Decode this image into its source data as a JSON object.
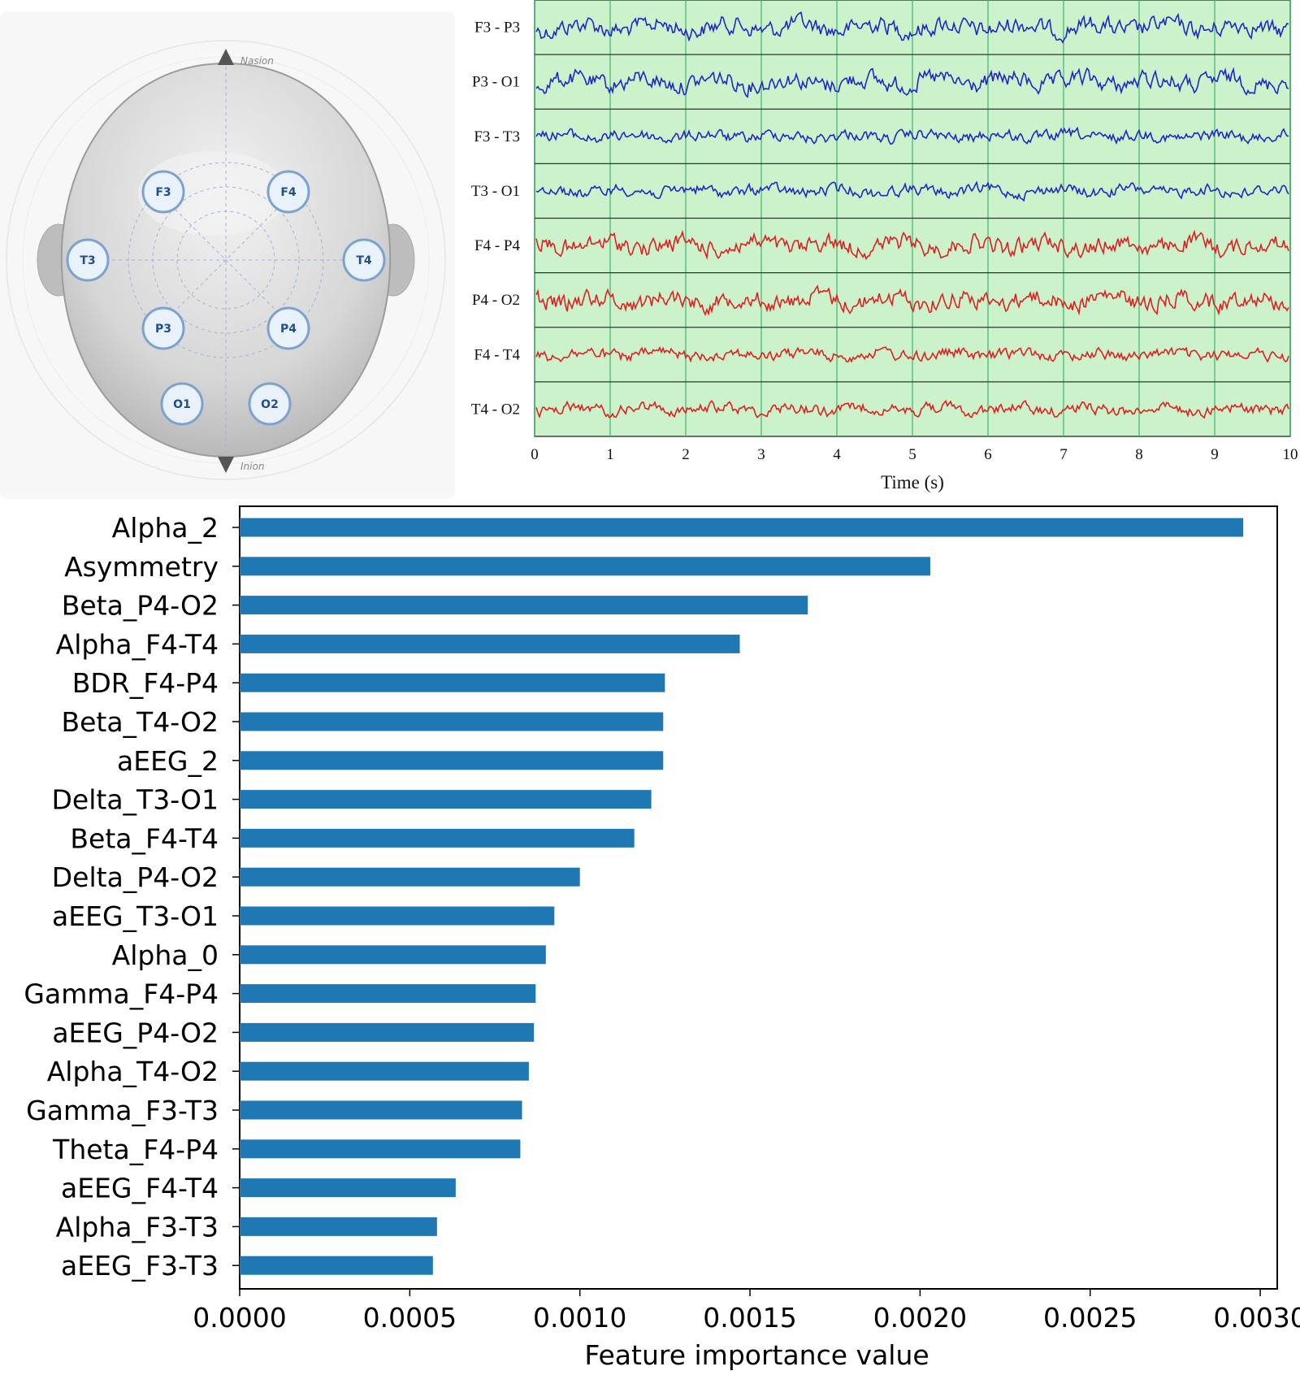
{
  "head_map": {
    "nasion_label": "Nasion",
    "inion_label": "Inion",
    "electrodes": [
      {
        "id": "F3",
        "label": "F3"
      },
      {
        "id": "F4",
        "label": "F4"
      },
      {
        "id": "T3",
        "label": "T3"
      },
      {
        "id": "T4",
        "label": "T4"
      },
      {
        "id": "P3",
        "label": "P3"
      },
      {
        "id": "P4",
        "label": "P4"
      },
      {
        "id": "O1",
        "label": "O1"
      },
      {
        "id": "O2",
        "label": "O2"
      }
    ],
    "colors": {
      "electrode_fill": "#e9f1fb",
      "electrode_stroke": "#7da2cf",
      "electrode_text": "#1f4f8f",
      "head": "#d4d4d4"
    }
  },
  "chart_data": [
    {
      "type": "line",
      "xlabel": "Time (s)",
      "xlim": [
        0,
        10
      ],
      "xticks": [
        "0",
        "1",
        "2",
        "3",
        "4",
        "5",
        "6",
        "7",
        "8",
        "9",
        "10"
      ],
      "grid": true,
      "background": "#ccf2cc",
      "channels": [
        {
          "name": "F3 - P3",
          "color": "#2424c8"
        },
        {
          "name": "P3 - O1",
          "color": "#2424c8"
        },
        {
          "name": "F3 - T3",
          "color": "#2424c8"
        },
        {
          "name": "T3 - O1",
          "color": "#2424c8"
        },
        {
          "name": "F4 - P4",
          "color": "#e02020"
        },
        {
          "name": "P4 - O2",
          "color": "#e02020"
        },
        {
          "name": "F4 - T4",
          "color": "#e02020"
        },
        {
          "name": "T4 - O2",
          "color": "#e02020"
        }
      ]
    },
    {
      "type": "bar",
      "orientation": "horizontal",
      "xlabel": "Feature importance value",
      "xlim": [
        0,
        0.00305
      ],
      "xticks": [
        "0.0000",
        "0.0005",
        "0.0010",
        "0.0015",
        "0.0020",
        "0.0025",
        "0.0030"
      ],
      "bar_color": "#1f77b4",
      "categories": [
        "Alpha_2",
        "Asymmetry",
        "Beta_P4-O2",
        "Alpha_F4-T4",
        "BDR_F4-P4",
        "Beta_T4-O2",
        "aEEG_2",
        "Delta_T3-O1",
        "Beta_F4-T4",
        "Delta_P4-O2",
        "aEEG_T3-O1",
        "Alpha_0",
        "Gamma_F4-P4",
        "aEEG_P4-O2",
        "Alpha_T4-O2",
        "Gamma_F3-T3",
        "Theta_F4-P4",
        "aEEG_F4-T4",
        "Alpha_F3-T3",
        "aEEG_F3-T3"
      ],
      "values": [
        0.00295,
        0.00203,
        0.00167,
        0.00147,
        0.00125,
        0.001245,
        0.001245,
        0.00121,
        0.00116,
        0.001,
        0.000925,
        0.0009,
        0.00087,
        0.000865,
        0.00085,
        0.00083,
        0.000825,
        0.000635,
        0.00058,
        0.000568
      ]
    }
  ]
}
